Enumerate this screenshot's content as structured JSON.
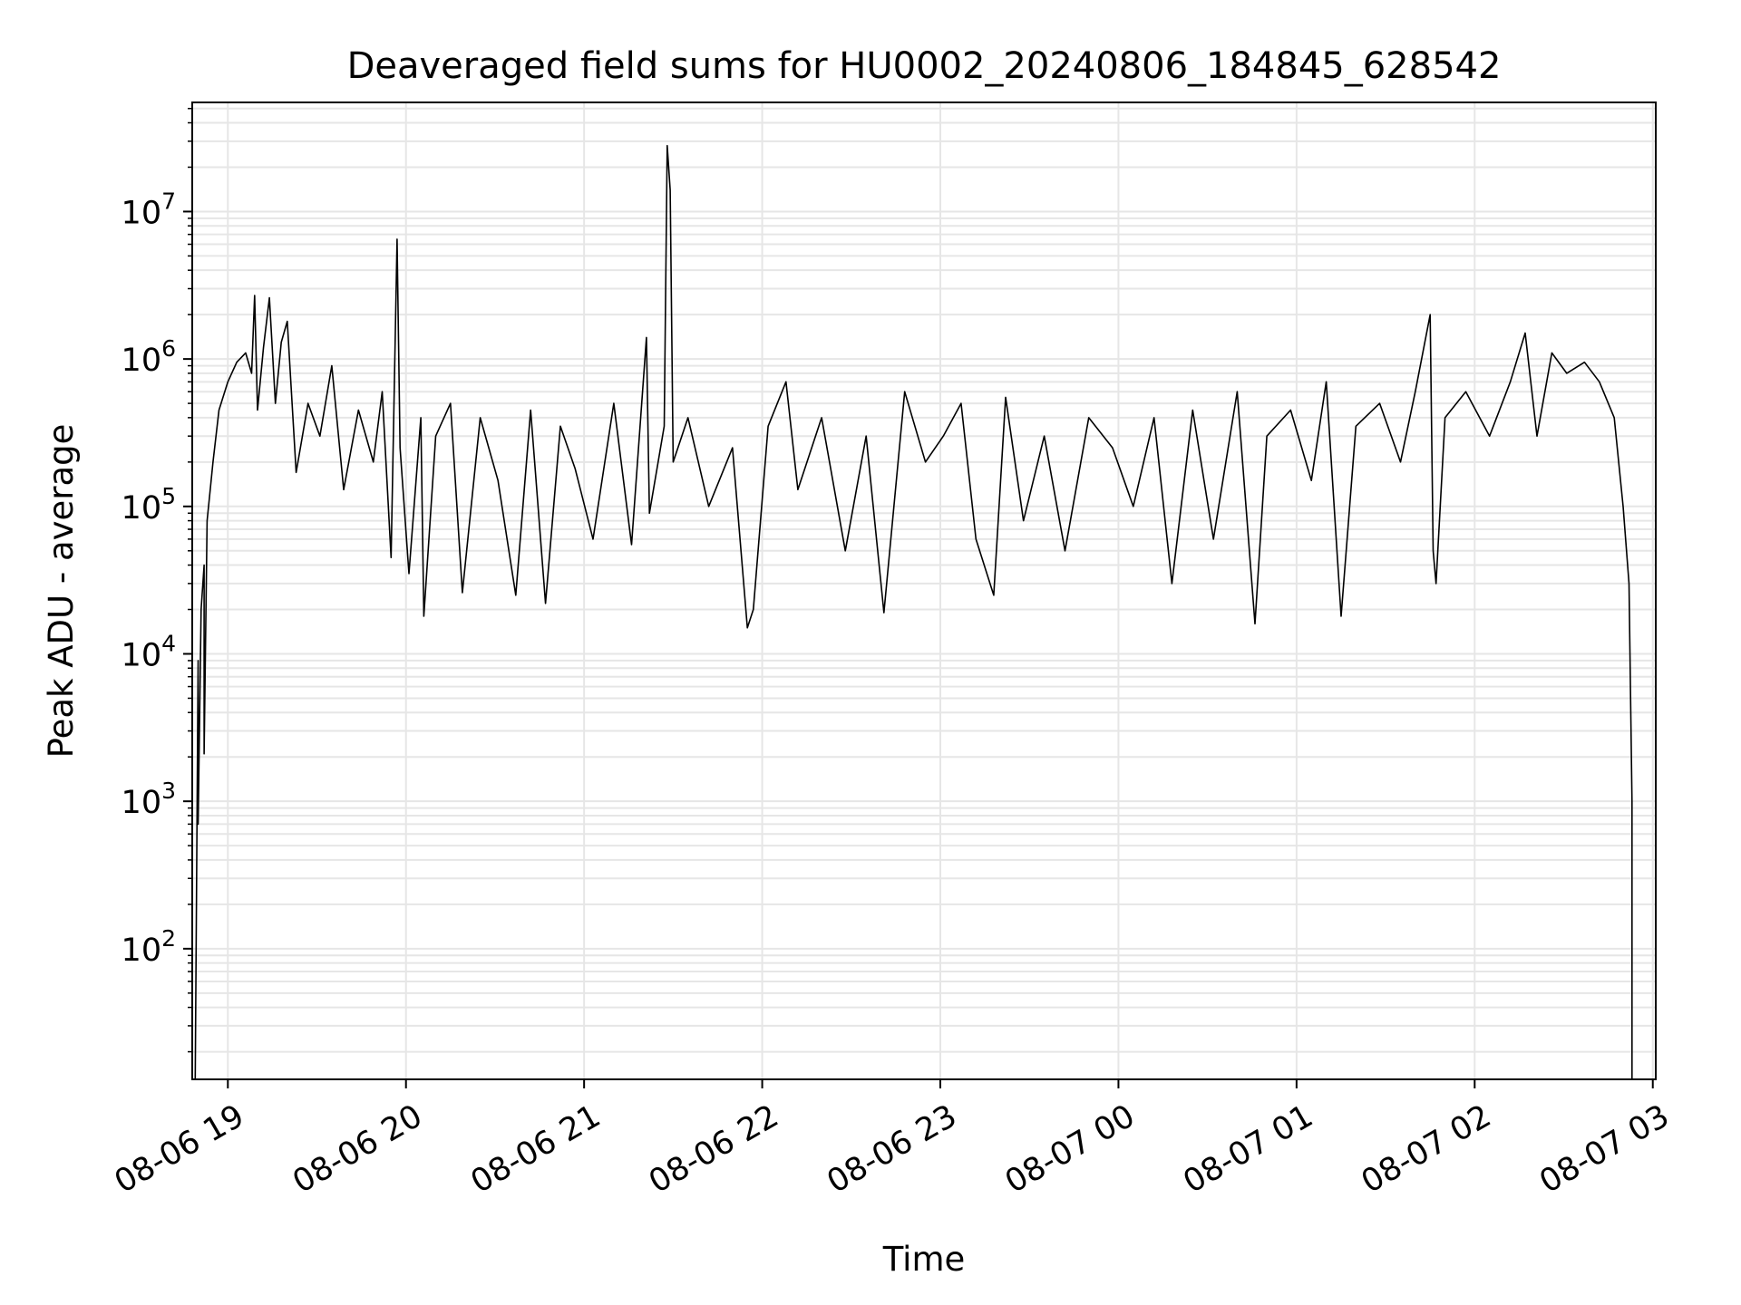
{
  "chart_data": {
    "type": "line",
    "title": "Deaveraged field sums for HU0002_20240806_184845_628542",
    "xlabel": "Time",
    "ylabel": "Peak ADU - average",
    "x_scale": "time",
    "y_scale": "log",
    "xlim": [
      "2024-08-06 18:48",
      "2024-08-07 03:01"
    ],
    "ylim": [
      13,
      55000000
    ],
    "x_ticks": [
      {
        "t": "2024-08-06 19:00",
        "label": "08-06 19"
      },
      {
        "t": "2024-08-06 20:00",
        "label": "08-06 20"
      },
      {
        "t": "2024-08-06 21:00",
        "label": "08-06 21"
      },
      {
        "t": "2024-08-06 22:00",
        "label": "08-06 22"
      },
      {
        "t": "2024-08-06 23:00",
        "label": "08-06 23"
      },
      {
        "t": "2024-08-07 00:00",
        "label": "08-07 00"
      },
      {
        "t": "2024-08-07 01:00",
        "label": "08-07 01"
      },
      {
        "t": "2024-08-07 02:00",
        "label": "08-07 02"
      },
      {
        "t": "2024-08-07 03:00",
        "label": "08-07 03"
      }
    ],
    "y_ticks": [
      {
        "value": 100,
        "base": "10",
        "exp": "2"
      },
      {
        "value": 1000,
        "base": "10",
        "exp": "3"
      },
      {
        "value": 10000,
        "base": "10",
        "exp": "4"
      },
      {
        "value": 100000,
        "base": "10",
        "exp": "5"
      },
      {
        "value": 1000000,
        "base": "10",
        "exp": "6"
      },
      {
        "value": 10000000,
        "base": "10",
        "exp": "7"
      }
    ],
    "grid": true,
    "grid_minor": true,
    "line_color": "#000000",
    "grid_color": "#e6e6e6",
    "series": [
      {
        "points": [
          [
            "2024-08-06 18:49",
            13
          ],
          [
            "2024-08-06 18:50",
            9000
          ],
          [
            "2024-08-06 18:50",
            700
          ],
          [
            "2024-08-06 18:51",
            20000
          ],
          [
            "2024-08-06 18:52",
            40000
          ],
          [
            "2024-08-06 18:52",
            2100
          ],
          [
            "2024-08-06 18:53",
            80000
          ],
          [
            "2024-08-06 18:55",
            200000
          ],
          [
            "2024-08-06 18:57",
            450000
          ],
          [
            "2024-08-06 19:00",
            700000
          ],
          [
            "2024-08-06 19:03",
            950000
          ],
          [
            "2024-08-06 19:06",
            1100000
          ],
          [
            "2024-08-06 19:08",
            800000
          ],
          [
            "2024-08-06 19:09",
            2700000
          ],
          [
            "2024-08-06 19:10",
            450000
          ],
          [
            "2024-08-06 19:12",
            1200000
          ],
          [
            "2024-08-06 19:14",
            2600000
          ],
          [
            "2024-08-06 19:16",
            500000
          ],
          [
            "2024-08-06 19:18",
            1300000
          ],
          [
            "2024-08-06 19:20",
            1800000
          ],
          [
            "2024-08-06 19:23",
            170000
          ],
          [
            "2024-08-06 19:27",
            500000
          ],
          [
            "2024-08-06 19:31",
            300000
          ],
          [
            "2024-08-06 19:35",
            900000
          ],
          [
            "2024-08-06 19:39",
            130000
          ],
          [
            "2024-08-06 19:44",
            450000
          ],
          [
            "2024-08-06 19:49",
            200000
          ],
          [
            "2024-08-06 19:52",
            600000
          ],
          [
            "2024-08-06 19:55",
            45000
          ],
          [
            "2024-08-06 19:57",
            6500000
          ],
          [
            "2024-08-06 19:58",
            250000
          ],
          [
            "2024-08-06 20:01",
            35000
          ],
          [
            "2024-08-06 20:05",
            400000
          ],
          [
            "2024-08-06 20:06",
            18000
          ],
          [
            "2024-08-06 20:10",
            300000
          ],
          [
            "2024-08-06 20:15",
            500000
          ],
          [
            "2024-08-06 20:19",
            26000
          ],
          [
            "2024-08-06 20:25",
            400000
          ],
          [
            "2024-08-06 20:31",
            150000
          ],
          [
            "2024-08-06 20:37",
            25000
          ],
          [
            "2024-08-06 20:42",
            450000
          ],
          [
            "2024-08-06 20:47",
            22000
          ],
          [
            "2024-08-06 20:52",
            350000
          ],
          [
            "2024-08-06 20:57",
            180000
          ],
          [
            "2024-08-06 21:03",
            60000
          ],
          [
            "2024-08-06 21:10",
            500000
          ],
          [
            "2024-08-06 21:16",
            55000
          ],
          [
            "2024-08-06 21:21",
            1400000
          ],
          [
            "2024-08-06 21:22",
            90000
          ],
          [
            "2024-08-06 21:27",
            350000
          ],
          [
            "2024-08-06 21:28",
            28000000
          ],
          [
            "2024-08-06 21:29",
            14000000
          ],
          [
            "2024-08-06 21:30",
            200000
          ],
          [
            "2024-08-06 21:35",
            400000
          ],
          [
            "2024-08-06 21:42",
            100000
          ],
          [
            "2024-08-06 21:50",
            250000
          ],
          [
            "2024-08-06 21:55",
            15000
          ],
          [
            "2024-08-06 21:57",
            20000
          ],
          [
            "2024-08-06 22:02",
            350000
          ],
          [
            "2024-08-06 22:08",
            700000
          ],
          [
            "2024-08-06 22:12",
            130000
          ],
          [
            "2024-08-06 22:20",
            400000
          ],
          [
            "2024-08-06 22:28",
            50000
          ],
          [
            "2024-08-06 22:35",
            300000
          ],
          [
            "2024-08-06 22:41",
            19000
          ],
          [
            "2024-08-06 22:48",
            600000
          ],
          [
            "2024-08-06 22:55",
            200000
          ],
          [
            "2024-08-06 23:01",
            300000
          ],
          [
            "2024-08-06 23:07",
            500000
          ],
          [
            "2024-08-06 23:12",
            60000
          ],
          [
            "2024-08-06 23:18",
            25000
          ],
          [
            "2024-08-06 23:22",
            550000
          ],
          [
            "2024-08-06 23:28",
            80000
          ],
          [
            "2024-08-06 23:35",
            300000
          ],
          [
            "2024-08-06 23:42",
            50000
          ],
          [
            "2024-08-06 23:50",
            400000
          ],
          [
            "2024-08-06 23:58",
            250000
          ],
          [
            "2024-08-07 00:05",
            100000
          ],
          [
            "2024-08-07 00:12",
            400000
          ],
          [
            "2024-08-07 00:18",
            30000
          ],
          [
            "2024-08-07 00:25",
            450000
          ],
          [
            "2024-08-07 00:32",
            60000
          ],
          [
            "2024-08-07 00:40",
            600000
          ],
          [
            "2024-08-07 00:46",
            16000
          ],
          [
            "2024-08-07 00:50",
            300000
          ],
          [
            "2024-08-07 00:58",
            450000
          ],
          [
            "2024-08-07 01:05",
            150000
          ],
          [
            "2024-08-07 01:10",
            700000
          ],
          [
            "2024-08-07 01:15",
            18000
          ],
          [
            "2024-08-07 01:20",
            350000
          ],
          [
            "2024-08-07 01:28",
            500000
          ],
          [
            "2024-08-07 01:35",
            200000
          ],
          [
            "2024-08-07 01:40",
            600000
          ],
          [
            "2024-08-07 01:45",
            2000000
          ],
          [
            "2024-08-07 01:46",
            50000
          ],
          [
            "2024-08-07 01:47",
            30000
          ],
          [
            "2024-08-07 01:50",
            400000
          ],
          [
            "2024-08-07 01:57",
            600000
          ],
          [
            "2024-08-07 02:05",
            300000
          ],
          [
            "2024-08-07 02:12",
            700000
          ],
          [
            "2024-08-07 02:17",
            1500000
          ],
          [
            "2024-08-07 02:21",
            300000
          ],
          [
            "2024-08-07 02:26",
            1100000
          ],
          [
            "2024-08-07 02:31",
            800000
          ],
          [
            "2024-08-07 02:37",
            950000
          ],
          [
            "2024-08-07 02:42",
            700000
          ],
          [
            "2024-08-07 02:47",
            400000
          ],
          [
            "2024-08-07 02:50",
            100000
          ],
          [
            "2024-08-07 02:52",
            30000
          ],
          [
            "2024-08-07 02:53",
            1000
          ],
          [
            "2024-08-07 02:53",
            13
          ]
        ]
      }
    ]
  }
}
